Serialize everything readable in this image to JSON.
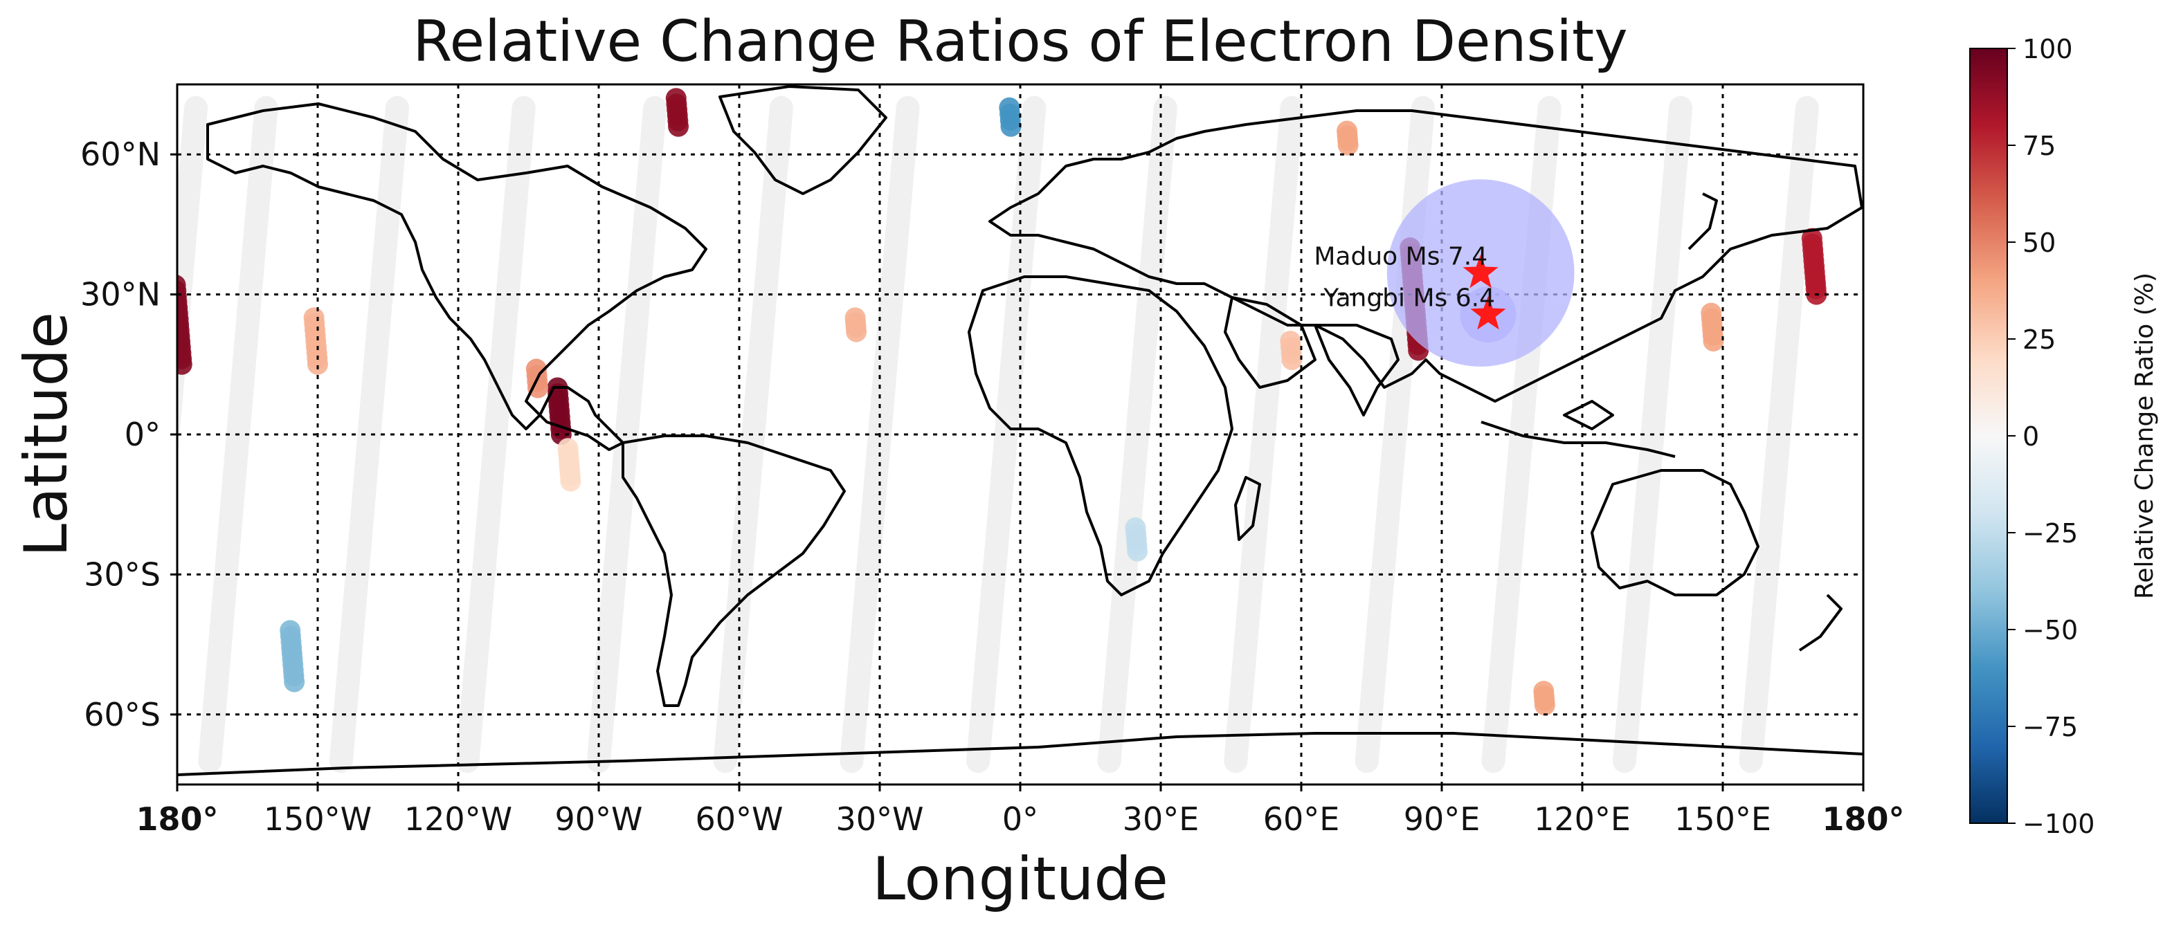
{
  "chart_data": {
    "type": "scatter",
    "title": "Relative Change Ratios of Electron Density",
    "xlabel": "Longitude",
    "ylabel": "Latitude",
    "xlim": [
      -180,
      180
    ],
    "ylim": [
      -75,
      75
    ],
    "grid": true,
    "x_ticks": [
      {
        "value": -180,
        "label": "180°"
      },
      {
        "value": -150,
        "label": "150°W"
      },
      {
        "value": -120,
        "label": "120°W"
      },
      {
        "value": -90,
        "label": "90°W"
      },
      {
        "value": -60,
        "label": "60°W"
      },
      {
        "value": -30,
        "label": "30°W"
      },
      {
        "value": 0,
        "label": "0°"
      },
      {
        "value": 30,
        "label": "30°E"
      },
      {
        "value": 60,
        "label": "60°E"
      },
      {
        "value": 90,
        "label": "90°E"
      },
      {
        "value": 120,
        "label": "120°E"
      },
      {
        "value": 150,
        "label": "150°E"
      },
      {
        "value": 180,
        "label": "180°"
      }
    ],
    "y_ticks": [
      {
        "value": 60,
        "label": "60°N"
      },
      {
        "value": 30,
        "label": "30°N"
      },
      {
        "value": 0,
        "label": "0°"
      },
      {
        "value": -30,
        "label": "30°S"
      },
      {
        "value": -60,
        "label": "60°S"
      }
    ],
    "colorbar": {
      "label": "Relative Change Ratio (%)",
      "range": [
        -100,
        100
      ],
      "ticks": [
        100,
        75,
        50,
        25,
        0,
        -25,
        -50,
        -75,
        -100
      ],
      "tick_labels": [
        "100",
        "75",
        "50",
        "25",
        "0",
        "−25",
        "−50",
        "−75",
        "−100"
      ],
      "colormap": "RdBu_r",
      "stops": [
        "#053061",
        "#2166ac",
        "#4393c3",
        "#92c5de",
        "#d1e5f0",
        "#f7f7f7",
        "#fddbc7",
        "#f4a582",
        "#d6604d",
        "#b2182b",
        "#67001f"
      ]
    },
    "orbit_tracks": {
      "description_free": true,
      "lat_range": [
        -70,
        70
      ],
      "lon_shift_per_track": -12,
      "start_lons_at_north": [
        -176,
        -161,
        -133,
        -106,
        -78,
        -51,
        -24,
        3,
        31,
        58,
        86,
        113,
        141,
        168
      ]
    },
    "anomalies": [
      {
        "lon": -179,
        "lat_from": 15,
        "lat_to": 32,
        "value": 92
      },
      {
        "lon": -150,
        "lat_from": 15,
        "lat_to": 25,
        "value": 35
      },
      {
        "lon": -155,
        "lat_from": -53,
        "lat_to": -42,
        "value": -45
      },
      {
        "lon": -98,
        "lat_from": 0,
        "lat_to": 10,
        "value": 95
      },
      {
        "lon": -103,
        "lat_from": 10,
        "lat_to": 14,
        "value": 45
      },
      {
        "lon": -96,
        "lat_from": -10,
        "lat_to": -3,
        "value": 20
      },
      {
        "lon": 85,
        "lat_from": 18,
        "lat_to": 40,
        "value": 88
      },
      {
        "lon": 170,
        "lat_from": 30,
        "lat_to": 42,
        "value": 80
      },
      {
        "lon": 148,
        "lat_from": 20,
        "lat_to": 26,
        "value": 40
      },
      {
        "lon": 25,
        "lat_from": -25,
        "lat_to": -20,
        "value": -25
      },
      {
        "lon": -2,
        "lat_from": 66,
        "lat_to": 70,
        "value": -60
      },
      {
        "lon": -35,
        "lat_from": 22,
        "lat_to": 25,
        "value": 35
      },
      {
        "lon": 58,
        "lat_from": 16,
        "lat_to": 20,
        "value": 30
      },
      {
        "lon": 112,
        "lat_from": -58,
        "lat_to": -55,
        "value": 40
      },
      {
        "lon": -73,
        "lat_from": 66,
        "lat_to": 72,
        "value": 90
      },
      {
        "lon": 70,
        "lat_from": 62,
        "lat_to": 65,
        "value": 40
      }
    ],
    "earthquakes": [
      {
        "name": "Maduo Ms 7.4",
        "lon": 98.3,
        "lat": 34.6
      },
      {
        "name": "Yangbi Ms 6.4",
        "lon": 99.9,
        "lat": 25.7
      }
    ],
    "prep_zones": [
      {
        "lon": 98.3,
        "lat": 34.6,
        "radius_deg": 20
      },
      {
        "lon": 99.9,
        "lat": 25.7,
        "radius_deg": 6
      }
    ],
    "zone_color": "#b3b3ff",
    "marker_color": "#ff1a1a"
  }
}
